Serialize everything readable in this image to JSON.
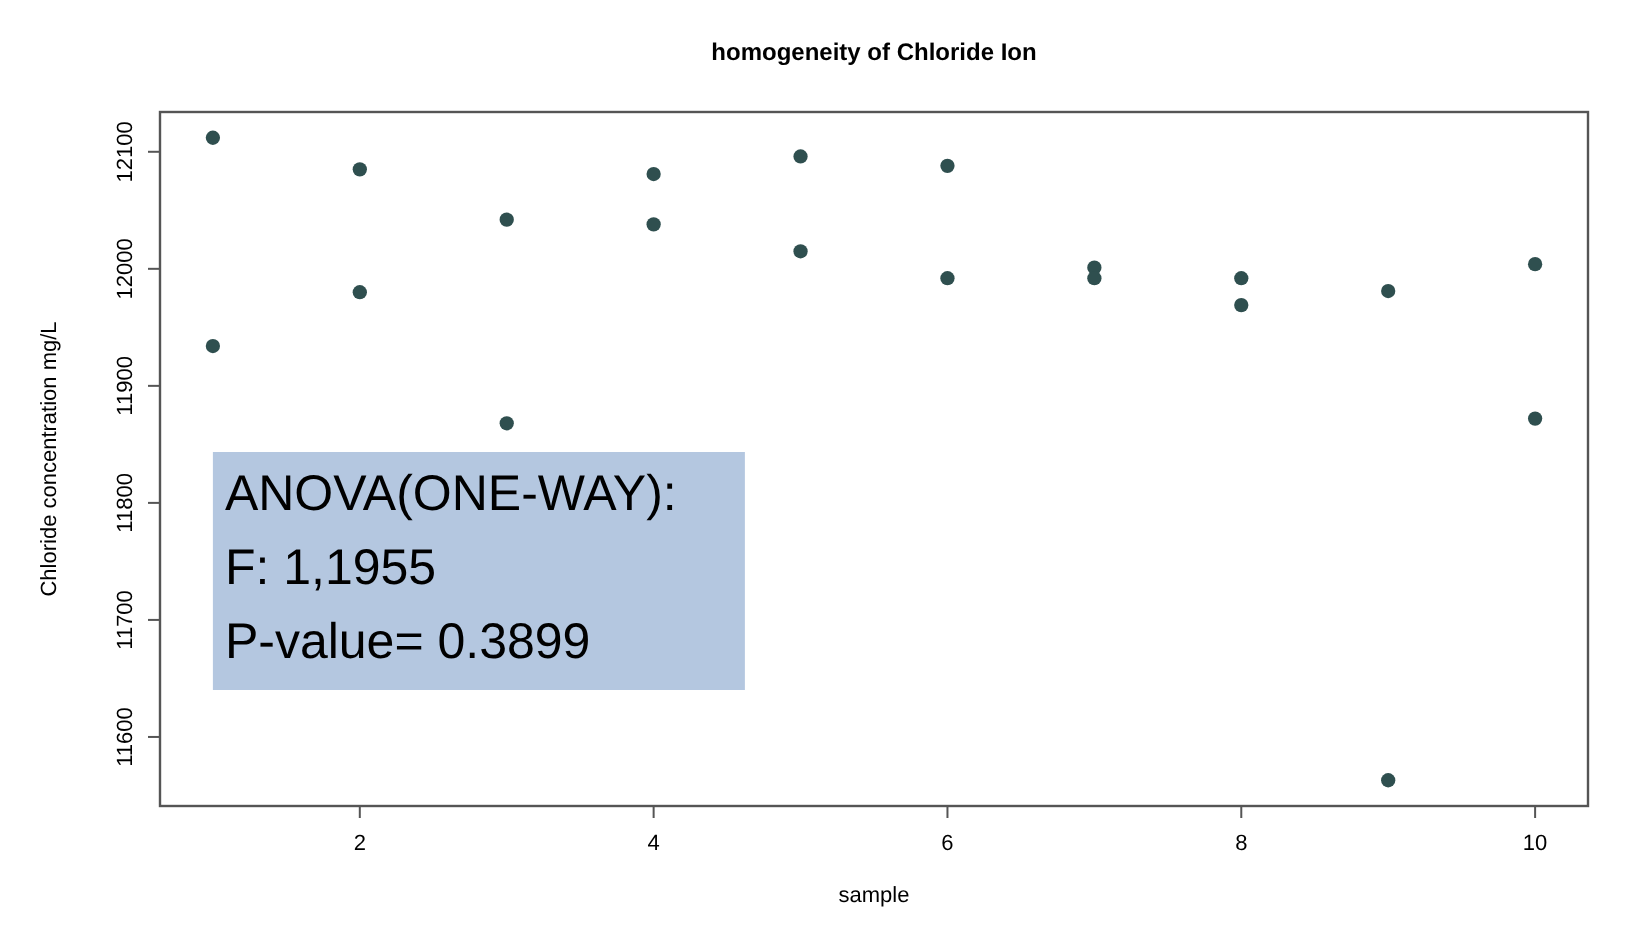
{
  "chart_data": {
    "type": "scatter",
    "title": "homogeneity of Chloride Ion",
    "xlabel": "sample",
    "ylabel": "Chloride concentration mg/L",
    "annotations": [
      "ANOVA(ONE-WAY):",
      "F: 1,1955",
      "P-value= 0.3899"
    ],
    "series": [
      {
        "color": "#2f4f4f",
        "x": [
          1,
          1,
          2,
          2,
          3,
          3,
          4,
          4,
          5,
          5,
          6,
          6,
          7,
          7,
          8,
          8,
          9,
          9,
          10,
          10
        ],
        "values": [
          12112,
          11934,
          12085,
          11980,
          12042,
          11868,
          12081,
          12038,
          12096,
          12015,
          12088,
          11992,
          12001,
          11992,
          11992,
          11969,
          11981,
          11563,
          12004,
          11872
        ]
      }
    ],
    "xlim": [
      0.64,
      10.36
    ],
    "xticks": [
      2,
      4,
      6,
      8,
      10
    ],
    "ylim": [
      11541,
      12134
    ],
    "yticks": [
      11600,
      11700,
      11800,
      11900,
      12000,
      12100
    ],
    "marker": "circle"
  }
}
